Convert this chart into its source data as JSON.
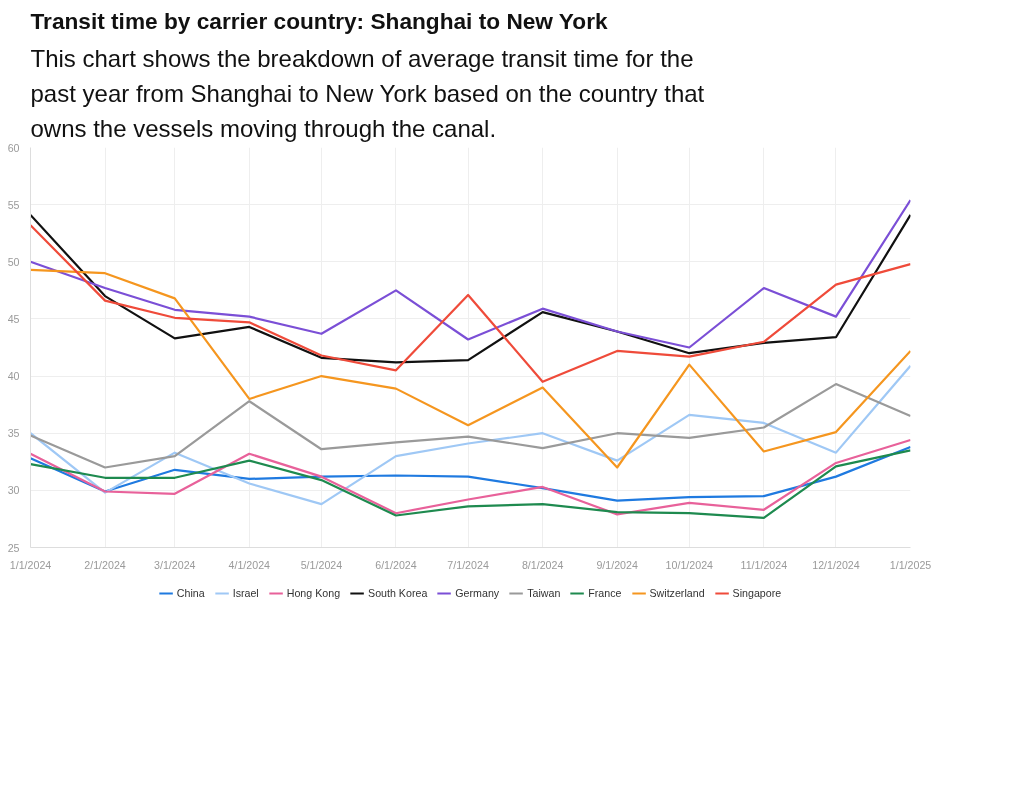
{
  "chart_data": {
    "type": "line",
    "title": "Transit time by carrier country: Shanghai to New York",
    "subtitle": "This chart shows the breakdown of average transit time for the past year from Shanghai to New York based on the country that owns the vessels moving through the canal.",
    "x": [
      "2024-01-01",
      "2024-02-01",
      "2024-03-01",
      "2024-04-01",
      "2024-05-01",
      "2024-06-01",
      "2024-07-01",
      "2024-08-01",
      "2024-09-01",
      "2024-10-01",
      "2024-11-01",
      "2024-12-01",
      "2025-01-01"
    ],
    "xlim": [
      "2024-01-01",
      "2025-01-01"
    ],
    "xticks": [
      {
        "value": "2024-01-01",
        "label": "1/1/2024"
      },
      {
        "value": "2024-02-01",
        "label": "2/1/2024"
      },
      {
        "value": "2024-03-01",
        "label": "3/1/2024"
      },
      {
        "value": "2024-04-01",
        "label": "4/1/2024"
      },
      {
        "value": "2024-05-01",
        "label": "5/1/2024"
      },
      {
        "value": "2024-06-01",
        "label": "6/1/2024"
      },
      {
        "value": "2024-07-01",
        "label": "7/1/2024"
      },
      {
        "value": "2024-08-01",
        "label": "8/1/2024"
      },
      {
        "value": "2024-09-01",
        "label": "9/1/2024"
      },
      {
        "value": "2024-10-01",
        "label": "10/1/2024"
      },
      {
        "value": "2024-11-01",
        "label": "11/1/2024"
      },
      {
        "value": "2024-12-01",
        "label": "12/1/2024"
      },
      {
        "value": "2025-01-01",
        "label": "1/1/2025"
      }
    ],
    "ylim": [
      25,
      60
    ],
    "yticks": [
      25,
      30,
      35,
      40,
      45,
      50,
      55,
      60
    ],
    "grid": true,
    "legend": "bottom",
    "marker": "none",
    "line_style": "solid",
    "series": [
      {
        "name": "China",
        "color": "#1f7ae0",
        "values": [
          32.8,
          29.9,
          31.8,
          31.0,
          31.2,
          31.3,
          31.2,
          30.2,
          29.1,
          29.4,
          29.5,
          31.2,
          33.8
        ]
      },
      {
        "name": "Israel",
        "color": "#9fc8f5",
        "values": [
          35.0,
          29.8,
          33.3,
          30.6,
          28.8,
          33.0,
          34.1,
          35.0,
          32.6,
          36.6,
          35.9,
          33.3,
          40.9
        ]
      },
      {
        "name": "Hong Kong",
        "color": "#e8619a",
        "values": [
          33.2,
          29.9,
          29.7,
          33.2,
          31.2,
          28.0,
          29.2,
          30.3,
          27.9,
          28.9,
          28.3,
          32.4,
          34.4
        ]
      },
      {
        "name": "South Korea",
        "color": "#111111",
        "values": [
          54.1,
          47.0,
          43.3,
          44.3,
          41.6,
          41.2,
          41.4,
          45.6,
          43.9,
          42.0,
          42.9,
          43.4,
          54.1
        ]
      },
      {
        "name": "Germany",
        "color": "#7b4fd6",
        "values": [
          50.0,
          47.7,
          45.8,
          45.2,
          43.7,
          47.5,
          43.2,
          45.9,
          43.9,
          42.5,
          47.7,
          45.2,
          55.4
        ]
      },
      {
        "name": "Taiwan",
        "color": "#9a9a9a",
        "values": [
          34.8,
          32.0,
          33.0,
          37.8,
          33.6,
          34.2,
          34.7,
          33.7,
          35.0,
          34.6,
          35.5,
          39.3,
          36.5
        ]
      },
      {
        "name": "France",
        "color": "#1e8a4f",
        "values": [
          32.3,
          31.1,
          31.1,
          32.6,
          30.9,
          27.8,
          28.6,
          28.8,
          28.1,
          28.0,
          27.6,
          32.1,
          33.5
        ]
      },
      {
        "name": "Switzerland",
        "color": "#f5961f",
        "values": [
          49.3,
          49.0,
          46.8,
          38.0,
          40.0,
          38.9,
          35.7,
          39.0,
          32.0,
          41.0,
          33.4,
          35.1,
          42.2
        ]
      },
      {
        "name": "Singapore",
        "color": "#ef4b3a",
        "values": [
          53.2,
          46.6,
          45.1,
          44.7,
          41.8,
          40.5,
          47.1,
          39.5,
          42.2,
          41.7,
          43.0,
          48.0,
          49.8
        ]
      }
    ]
  }
}
